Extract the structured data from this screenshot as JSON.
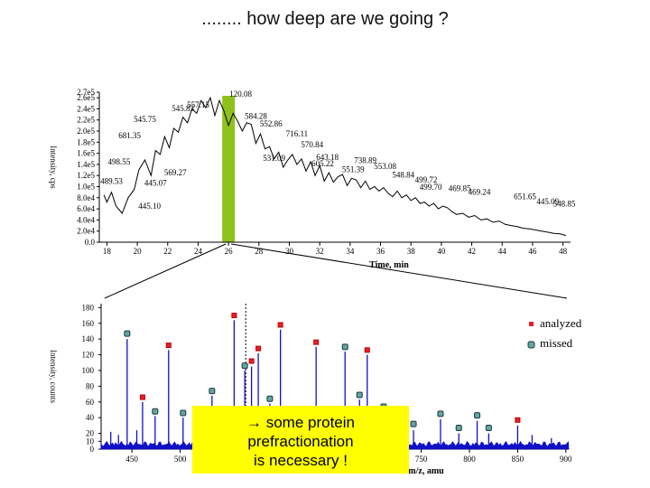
{
  "title": "........ how deep are we going ?",
  "chart_data": [
    {
      "type": "line",
      "xlabel": "Time, min",
      "ylabel": "Intensity, cps",
      "xlim": [
        17.5,
        48.5
      ],
      "ylim": [
        0,
        270000
      ],
      "x_ticks": [
        "18",
        "20",
        "22",
        "24",
        "26",
        "28",
        "30",
        "32",
        "34",
        "36",
        "38",
        "40",
        "42",
        "44",
        "46",
        "48"
      ],
      "y_ticks": [
        "0.0",
        "2.0e4",
        "4.0e4",
        "6.0e4",
        "8.0e4",
        "1.0e5",
        "1.2e5",
        "1.4e5",
        "1.6e5",
        "1.8e5",
        "2.0e5",
        "2.2e5",
        "2.4e5",
        "2.6e5",
        "2.7e5"
      ],
      "highlight_x": 26,
      "x": [
        17.8,
        18.0,
        18.3,
        18.6,
        19.0,
        19.4,
        19.8,
        20.1,
        20.5,
        20.9,
        21.2,
        21.5,
        21.8,
        22.1,
        22.4,
        22.7,
        23.0,
        23.3,
        23.6,
        23.9,
        24.2,
        24.5,
        24.8,
        25.1,
        25.4,
        25.7,
        26.0,
        26.3,
        26.6,
        26.9,
        27.2,
        27.5,
        27.8,
        28.1,
        28.4,
        28.7,
        29.0,
        29.3,
        29.6,
        29.9,
        30.2,
        30.5,
        30.8,
        31.1,
        31.4,
        31.7,
        32.0,
        32.3,
        32.6,
        32.9,
        33.2,
        33.5,
        33.8,
        34.1,
        34.4,
        34.7,
        35.0,
        35.3,
        35.6,
        35.9,
        36.2,
        36.5,
        36.8,
        37.1,
        37.4,
        37.7,
        38.0,
        38.3,
        38.6,
        38.9,
        39.2,
        39.5,
        39.8,
        40.1,
        40.4,
        40.7,
        41.0,
        41.4,
        41.8,
        42.2,
        42.6,
        43.0,
        43.4,
        43.8,
        44.2,
        44.6,
        45.0,
        45.4,
        45.8,
        46.2,
        46.6,
        47.0,
        47.4,
        47.8,
        48.2
      ],
      "y": [
        85000,
        72000,
        90000,
        65000,
        52000,
        80000,
        95000,
        130000,
        148000,
        120000,
        165000,
        158000,
        190000,
        170000,
        205000,
        198000,
        225000,
        215000,
        240000,
        232000,
        255000,
        242000,
        260000,
        228000,
        255000,
        236000,
        210000,
        232000,
        218000,
        200000,
        215000,
        212000,
        178000,
        195000,
        168000,
        172000,
        150000,
        162000,
        135000,
        148000,
        158000,
        140000,
        150000,
        128000,
        145000,
        120000,
        138000,
        110000,
        125000,
        108000,
        118000,
        122000,
        102000,
        115000,
        112000,
        98000,
        110000,
        95000,
        100000,
        92000,
        98000,
        88000,
        82000,
        92000,
        80000,
        85000,
        75000,
        80000,
        70000,
        72000,
        65000,
        70000,
        60000,
        65000,
        62000,
        55000,
        50000,
        52000,
        45000,
        48000,
        40000,
        42000,
        36000,
        38000,
        32000,
        30000,
        28000,
        25000,
        24000,
        22000,
        20000,
        18000,
        16000,
        15000,
        12000
      ],
      "peak_labels": [
        {
          "text": "120.08",
          "x": 26.8,
          "y": 262000
        },
        {
          "text": "557.15",
          "x": 24.0,
          "y": 242000
        },
        {
          "text": "545.83",
          "x": 23.0,
          "y": 236000
        },
        {
          "text": "545.75",
          "x": 20.5,
          "y": 216000
        },
        {
          "text": "584.28",
          "x": 27.8,
          "y": 222000
        },
        {
          "text": "552.86",
          "x": 28.8,
          "y": 208000
        },
        {
          "text": "681.35",
          "x": 19.5,
          "y": 187000
        },
        {
          "text": "716.11",
          "x": 30.5,
          "y": 190000
        },
        {
          "text": "570.84",
          "x": 31.5,
          "y": 171000
        },
        {
          "text": "531.09",
          "x": 29.0,
          "y": 146000
        },
        {
          "text": "643.18",
          "x": 32.5,
          "y": 148000
        },
        {
          "text": "498.55",
          "x": 18.8,
          "y": 140000
        },
        {
          "text": "605.22",
          "x": 32.2,
          "y": 137000
        },
        {
          "text": "738.89",
          "x": 35.0,
          "y": 142000
        },
        {
          "text": "553.08",
          "x": 36.3,
          "y": 132000
        },
        {
          "text": "551.39",
          "x": 34.2,
          "y": 126000
        },
        {
          "text": "548.84",
          "x": 37.5,
          "y": 116000
        },
        {
          "text": "569.27",
          "x": 22.5,
          "y": 120000
        },
        {
          "text": "499.72",
          "x": 39.0,
          "y": 107000
        },
        {
          "text": "489.53",
          "x": 18.3,
          "y": 105000
        },
        {
          "text": "445.07",
          "x": 21.2,
          "y": 102000
        },
        {
          "text": "499.70",
          "x": 39.3,
          "y": 94000
        },
        {
          "text": "469.85",
          "x": 41.2,
          "y": 92000
        },
        {
          "text": "469.24",
          "x": 42.5,
          "y": 85000
        },
        {
          "text": "651.65",
          "x": 45.5,
          "y": 77000
        },
        {
          "text": "445.10",
          "x": 20.8,
          "y": 60000
        },
        {
          "text": "445.09",
          "x": 47.0,
          "y": 68000
        },
        {
          "text": "548.85",
          "x": 49.5,
          "y": 64000
        }
      ]
    },
    {
      "type": "bar",
      "xlabel": "m/z, amu",
      "ylabel": "Intensity, counts",
      "xlim": [
        418,
        903
      ],
      "ylim": [
        0,
        185
      ],
      "x_ticks": [
        "450",
        "500",
        "550",
        "600",
        "650",
        "700",
        "750",
        "800",
        "850",
        "900"
      ],
      "y_ticks": [
        "0",
        "10",
        "20",
        "40",
        "60",
        "80",
        "100",
        "120",
        "140",
        "160",
        "180"
      ],
      "legend": [
        {
          "label": "analyzed",
          "color": "#e8202a",
          "marker": "star"
        },
        {
          "label": "missed",
          "color": "#5fa8a0",
          "marker": "circle"
        }
      ],
      "peaks": [
        {
          "x": 428,
          "y": 22
        },
        {
          "x": 436,
          "y": 18
        },
        {
          "x": 445,
          "y": 140
        },
        {
          "x": 455,
          "y": 24
        },
        {
          "x": 461,
          "y": 60
        },
        {
          "x": 474,
          "y": 42
        },
        {
          "x": 488,
          "y": 126
        },
        {
          "x": 503,
          "y": 40
        },
        {
          "x": 515,
          "y": 20
        },
        {
          "x": 524,
          "y": 42
        },
        {
          "x": 533,
          "y": 68
        },
        {
          "x": 543,
          "y": 35
        },
        {
          "x": 556,
          "y": 164
        },
        {
          "x": 567,
          "y": 100
        },
        {
          "x": 574,
          "y": 105
        },
        {
          "x": 581,
          "y": 122
        },
        {
          "x": 593,
          "y": 58
        },
        {
          "x": 604,
          "y": 152
        },
        {
          "x": 617,
          "y": 30
        },
        {
          "x": 624,
          "y": 26
        },
        {
          "x": 641,
          "y": 130
        },
        {
          "x": 655,
          "y": 35
        },
        {
          "x": 671,
          "y": 124
        },
        {
          "x": 686,
          "y": 63
        },
        {
          "x": 694,
          "y": 120
        },
        {
          "x": 711,
          "y": 48
        },
        {
          "x": 726,
          "y": 38
        },
        {
          "x": 742,
          "y": 24
        },
        {
          "x": 770,
          "y": 38
        },
        {
          "x": 789,
          "y": 20
        },
        {
          "x": 808,
          "y": 36
        },
        {
          "x": 820,
          "y": 20
        },
        {
          "x": 850,
          "y": 30
        },
        {
          "x": 865,
          "y": 18
        },
        {
          "x": 885,
          "y": 14
        }
      ],
      "markers": [
        {
          "x": 445,
          "y": 147,
          "type": "missed"
        },
        {
          "x": 461,
          "y": 66,
          "type": "analyzed"
        },
        {
          "x": 474,
          "y": 48,
          "type": "missed"
        },
        {
          "x": 488,
          "y": 132,
          "type": "analyzed"
        },
        {
          "x": 503,
          "y": 46,
          "type": "missed"
        },
        {
          "x": 524,
          "y": 48,
          "type": "missed"
        },
        {
          "x": 533,
          "y": 74,
          "type": "missed"
        },
        {
          "x": 556,
          "y": 170,
          "type": "analyzed"
        },
        {
          "x": 567,
          "y": 106,
          "type": "missed"
        },
        {
          "x": 574,
          "y": 112,
          "type": "analyzed"
        },
        {
          "x": 581,
          "y": 128,
          "type": "analyzed"
        },
        {
          "x": 593,
          "y": 64,
          "type": "missed"
        },
        {
          "x": 604,
          "y": 158,
          "type": "analyzed"
        },
        {
          "x": 641,
          "y": 136,
          "type": "analyzed"
        },
        {
          "x": 671,
          "y": 130,
          "type": "missed"
        },
        {
          "x": 686,
          "y": 69,
          "type": "missed"
        },
        {
          "x": 694,
          "y": 126,
          "type": "analyzed"
        },
        {
          "x": 711,
          "y": 54,
          "type": "missed"
        },
        {
          "x": 742,
          "y": 32,
          "type": "missed"
        },
        {
          "x": 770,
          "y": 45,
          "type": "missed"
        },
        {
          "x": 789,
          "y": 27,
          "type": "missed"
        },
        {
          "x": 808,
          "y": 43,
          "type": "missed"
        },
        {
          "x": 820,
          "y": 27,
          "type": "missed"
        },
        {
          "x": 850,
          "y": 37,
          "type": "analyzed"
        }
      ]
    }
  ],
  "callout": {
    "line1": "→  some protein",
    "line2": "prefractionation",
    "line3": "is necessary !"
  },
  "colors": {
    "upper_trace": "#000000",
    "lower_trace": "#1010c8",
    "highlight_bar": "#8ec21b",
    "callout_bg": "#ffff00"
  }
}
